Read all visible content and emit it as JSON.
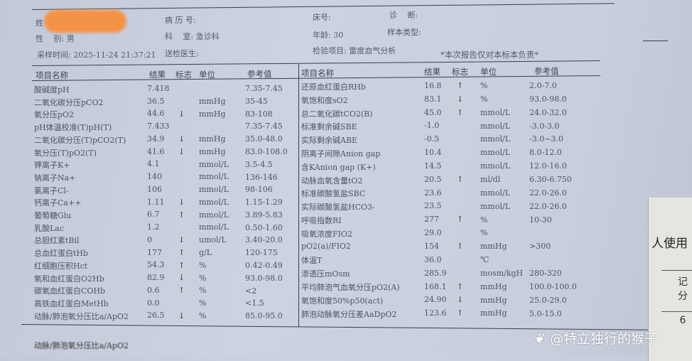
{
  "header": {
    "name_label": "姓",
    "record_label": "病 历 号:",
    "bed_label": "床号:",
    "diagnosis_label": "诊　 断:",
    "gender": "性　 别: 男",
    "department": "科　 室: 急诊科",
    "age": "年龄: 30",
    "sample_type_label": "样本类型:",
    "sample_time": "采样时间: 2025-11-24 21:37:21",
    "doctor_label": "送检医生:",
    "test_item": "检验项目: 雷度血气分析",
    "disclaimer": "*本次报告仅对本标本负责*"
  },
  "columns": {
    "name": "项目名称",
    "result": "结果",
    "flag": "标志",
    "unit": "单位",
    "ref": "参考值"
  },
  "flag_colors": {
    "up": "#333333",
    "down": "#333333"
  },
  "left_rows": [
    {
      "name": "酸碱度pH",
      "result": "7.418",
      "flag": "",
      "unit": "",
      "ref": "7.35-7.45"
    },
    {
      "name": "二氧化碳分压pCO2",
      "result": "36.5",
      "flag": "",
      "unit": "mmHg",
      "ref": "35-45"
    },
    {
      "name": "氧分压pO2",
      "result": "44.6",
      "flag": "↓",
      "unit": "mmHg",
      "ref": "83-108"
    },
    {
      "name": "pH体温校准(T)pH(T)",
      "result": "7.433",
      "flag": "",
      "unit": "",
      "ref": "7.35-7.45"
    },
    {
      "name": "二氧化碳分压(T)pCO2(T)",
      "result": "34.9",
      "flag": "↓",
      "unit": "mmHg",
      "ref": "35.0-48.0"
    },
    {
      "name": "氧分压(T)pO2(T)",
      "result": "41.6",
      "flag": "↓",
      "unit": "mmHg",
      "ref": "83.0-108.0"
    },
    {
      "name": "钾离子K+",
      "result": "4.1",
      "flag": "",
      "unit": "mmol/L",
      "ref": "3.5-4.5"
    },
    {
      "name": "钠离子Na+",
      "result": "140",
      "flag": "",
      "unit": "mmol/L",
      "ref": "136-146"
    },
    {
      "name": "氯离子Cl-",
      "result": "106",
      "flag": "",
      "unit": "mmol/L",
      "ref": "98-106"
    },
    {
      "name": "钙离子Ca++",
      "result": "1.11",
      "flag": "↓",
      "unit": "mmol/L",
      "ref": "1.15-1.29"
    },
    {
      "name": "葡萄糖Glu",
      "result": "6.7",
      "flag": "↑",
      "unit": "mmol/L",
      "ref": "3.89-5.83"
    },
    {
      "name": "乳酸Lac",
      "result": "1.2",
      "flag": "",
      "unit": "mmol/L",
      "ref": "0.50-1.60"
    },
    {
      "name": "总胆红素tBil",
      "result": "0",
      "flag": "↓",
      "unit": "umol/L",
      "ref": "3.40-20.0"
    },
    {
      "name": "总血红蛋白tHb",
      "result": "177",
      "flag": "↑",
      "unit": "g/L",
      "ref": "120-175"
    },
    {
      "name": "红细胞压积Hct",
      "result": "54.3",
      "flag": "↑",
      "unit": "%",
      "ref": "0.42-0.49"
    },
    {
      "name": "氧和血红蛋白O2Hb",
      "result": "82.9",
      "flag": "↓",
      "unit": "%",
      "ref": "93.0-98.0"
    },
    {
      "name": "碳氧血红蛋白COHb",
      "result": "0.6",
      "flag": "↑",
      "unit": "%",
      "ref": "<2"
    },
    {
      "name": "高铁血红蛋白MetHb",
      "result": "0.0",
      "flag": "",
      "unit": "%",
      "ref": "<1.5"
    },
    {
      "name": "动脉/肺泡氧分压比a/ApO2",
      "result": "26.5",
      "flag": "↓",
      "unit": "%",
      "ref": "85.0-95.0"
    }
  ],
  "right_rows": [
    {
      "name": "还原血红蛋白RHb",
      "result": "16.8",
      "flag": "↑",
      "unit": "%",
      "ref": "2.0-7.0"
    },
    {
      "name": "氧饱和度sO2",
      "result": "83.1",
      "flag": "↓",
      "unit": "%",
      "ref": "93.0-98.0"
    },
    {
      "name": "总二氧化碳tCO2(B)",
      "result": "45.0",
      "flag": "↑",
      "unit": "mmol/L",
      "ref": "24.0-32.0"
    },
    {
      "name": "标准剩余碱SBE",
      "result": "-1.0",
      "flag": "",
      "unit": "mmol/L",
      "ref": "-3.0-3.0"
    },
    {
      "name": "实际剩余碱ABE",
      "result": "-0.5",
      "flag": "",
      "unit": "mmol/L",
      "ref": "-3.0~3.0"
    },
    {
      "name": "阴离子间隙Anion gap",
      "result": "10.4",
      "flag": "",
      "unit": "mmol/L",
      "ref": "8.0-12.0"
    },
    {
      "name": "含KAnion gap (K+)",
      "result": "14.5",
      "flag": "",
      "unit": "mmol/L",
      "ref": "12.0-16.0"
    },
    {
      "name": "动脉血氧含量tO2",
      "result": "20.5",
      "flag": "↑",
      "unit": "ml/dl",
      "ref": "6.30-6.750"
    },
    {
      "name": "标准碳酸氢盐SBC",
      "result": "23.6",
      "flag": "",
      "unit": "mmol/L",
      "ref": "22.0-26.0"
    },
    {
      "name": "实际碳酸氢盐HCO3-",
      "result": "23.5",
      "flag": "",
      "unit": "mmol/L",
      "ref": "22.0-26.0"
    },
    {
      "name": "呼吸指数RI",
      "result": "277",
      "flag": "↑",
      "unit": "%",
      "ref": "10-30"
    },
    {
      "name": "吸氧浓度FIO2",
      "result": "29.0",
      "flag": "",
      "unit": "%",
      "ref": ""
    },
    {
      "name": "pO2(a)/FIO2",
      "result": "154",
      "flag": "↑",
      "unit": "mmHg",
      "ref": ">300"
    },
    {
      "name": "体温T",
      "result": "36.0",
      "flag": "",
      "unit": "℃",
      "ref": ""
    },
    {
      "name": "渗透压mOsm",
      "result": "285.9",
      "flag": "",
      "unit": "mosm/kgH",
      "ref": "280-320"
    },
    {
      "name": "平均肺泡气血氧分压pO2(A)",
      "result": "168.1",
      "flag": "↑",
      "unit": "mmHg",
      "ref": "100.0-100.0"
    },
    {
      "name": "氧饱和度50%p50(act)",
      "result": "24.90",
      "flag": "↓",
      "unit": "mmHg",
      "ref": "25.0-29.0"
    },
    {
      "name": "肺泡动脉氧分压差AaDpO2",
      "result": "123.6",
      "flag": "↑",
      "unit": "mmHg",
      "ref": "5.0-15.0"
    }
  ],
  "footer_text": "动脉/肺泡氧分压比a/ApO2",
  "side_card": {
    "text": "人使用",
    "cell_header": "记\n分",
    "cell_value": "6"
  },
  "watermark": "@特立独行的猴子"
}
